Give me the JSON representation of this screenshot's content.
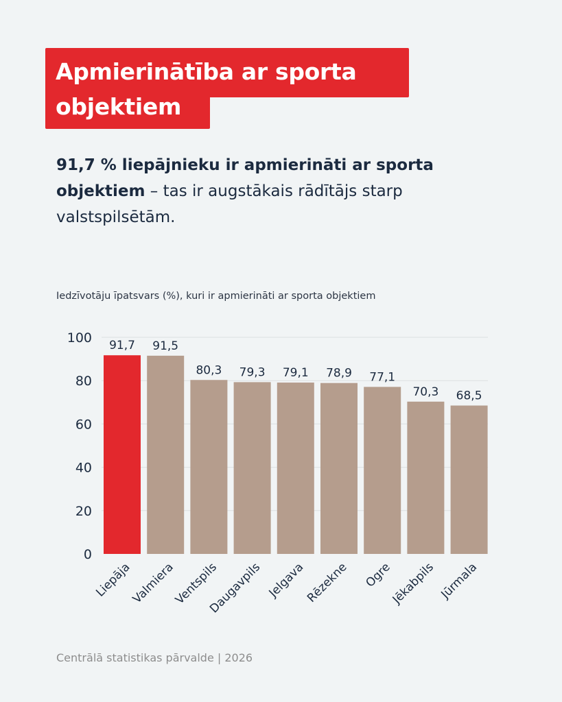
{
  "header": {
    "title_line1": "Apmierinātība ar sporta",
    "title_line2": "objektiem"
  },
  "subtitle": {
    "bold": "91,7 % liepājnieku ir apmierināti ar sporta objektiem",
    "rest": " – tas ir augstākais rādītājs starp valstspilsētām."
  },
  "source": "Centrālā statistikas pārvalde | 2026",
  "colors": {
    "highlight": "#e3282d",
    "bar": "#b59d8d",
    "grid": "#dcdfe1",
    "text": "#1b2a3f"
  },
  "chart_data": {
    "type": "bar",
    "title": "Iedzīvotāju īpatsvars (%), kuri ir apmierināti ar sporta objektiem",
    "xlabel": "",
    "ylabel": "",
    "categories": [
      "Liepāja",
      "Valmiera",
      "Ventspils",
      "Daugavpils",
      "Jelgava",
      "Rēzekne",
      "Ogre",
      "Jēkabpils",
      "Jūrmala"
    ],
    "values": [
      91.7,
      91.5,
      80.3,
      79.3,
      79.1,
      78.9,
      77.1,
      70.3,
      68.5
    ],
    "value_labels": [
      "91,7",
      "91,5",
      "80,3",
      "79,3",
      "79,1",
      "78,9",
      "77,1",
      "70,3",
      "68,5"
    ],
    "highlight_index": 0,
    "ylim": [
      0,
      100
    ],
    "yticks": [
      0,
      20,
      40,
      60,
      80,
      100
    ],
    "grid": true,
    "legend": "none"
  }
}
